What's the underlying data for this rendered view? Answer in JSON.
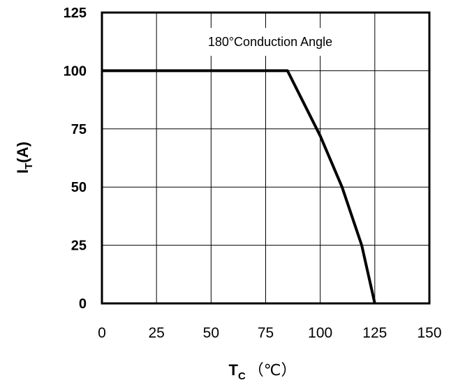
{
  "chart_data": {
    "type": "line",
    "xlabel_main": "T",
    "xlabel_sub": "C",
    "xlabel_unit": "（℃）",
    "ylabel_main": "I",
    "ylabel_sub": "T",
    "ylabel_unit": "(A)",
    "annotation": "180°Conduction Angle",
    "xlim": [
      0,
      150
    ],
    "ylim": [
      0,
      125
    ],
    "x_ticks": [
      "0",
      "25",
      "50",
      "75",
      "100",
      "125",
      "150"
    ],
    "y_ticks": [
      "0",
      "25",
      "50",
      "75",
      "100",
      "125"
    ],
    "grid": true,
    "series": [
      {
        "x": [
          0,
          85,
          100,
          110,
          119,
          125
        ],
        "y": [
          100,
          100,
          72,
          50,
          25,
          0
        ]
      }
    ]
  }
}
